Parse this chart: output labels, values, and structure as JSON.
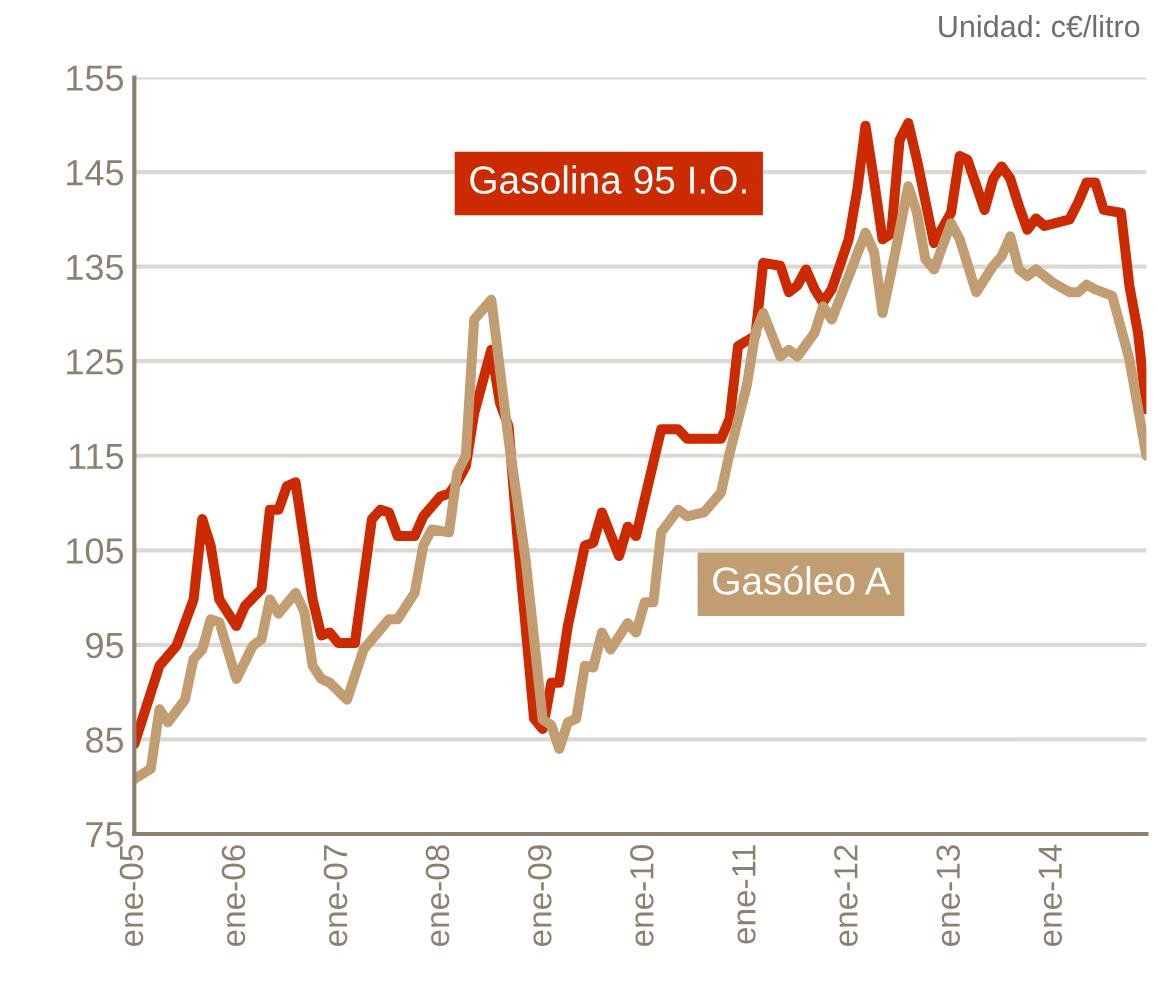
{
  "chart_data": {
    "type": "line",
    "annotations": [
      "Unidad: c€/litro"
    ],
    "xlim": [
      "2005-01",
      "2014-12"
    ],
    "xticks": [
      {
        "value": "2005-01",
        "label": "ene-05"
      },
      {
        "value": "2006-01",
        "label": "ene-06"
      },
      {
        "value": "2007-01",
        "label": "ene-07"
      },
      {
        "value": "2008-01",
        "label": "ene-08"
      },
      {
        "value": "2009-01",
        "label": "ene-09"
      },
      {
        "value": "2010-01",
        "label": "ene-10"
      },
      {
        "value": "2011-01",
        "label": "ene-11"
      },
      {
        "value": "2012-01",
        "label": "ene-12"
      },
      {
        "value": "2013-01",
        "label": "ene-13"
      },
      {
        "value": "2014-01",
        "label": "ene-14"
      }
    ],
    "ylim": [
      75,
      155
    ],
    "yticks": [
      75,
      85,
      95,
      105,
      115,
      125,
      135,
      145,
      155
    ],
    "grid": "y",
    "legend": false,
    "series": [
      {
        "name": "Gasolina 95 I.O.",
        "color": "#cc2a00",
        "x": [
          "2005-01",
          "2005-04",
          "2005-06",
          "2005-08",
          "2005-09",
          "2005-10",
          "2005-11",
          "2006-01",
          "2006-02",
          "2006-04",
          "2006-05",
          "2006-06",
          "2006-07",
          "2006-08",
          "2006-10",
          "2006-11",
          "2006-12",
          "2007-01",
          "2007-03",
          "2007-05",
          "2007-06",
          "2007-07",
          "2007-08",
          "2007-10",
          "2007-11",
          "2008-01",
          "2008-02",
          "2008-03",
          "2008-04",
          "2008-05",
          "2008-07",
          "2008-08",
          "2008-09",
          "2008-10",
          "2008-12",
          "2009-01",
          "2009-02",
          "2009-03",
          "2009-04",
          "2009-06",
          "2009-07",
          "2009-08",
          "2009-10",
          "2009-11",
          "2009-12",
          "2010-01",
          "2010-03",
          "2010-05",
          "2010-06",
          "2010-07",
          "2010-10",
          "2010-11",
          "2010-12",
          "2011-02",
          "2011-03",
          "2011-05",
          "2011-06",
          "2011-07",
          "2011-08",
          "2011-09",
          "2011-10",
          "2011-11",
          "2012-01",
          "2012-02",
          "2012-03",
          "2012-04",
          "2012-05",
          "2012-06",
          "2012-07",
          "2012-08",
          "2012-09",
          "2012-11",
          "2013-01",
          "2013-02",
          "2013-03",
          "2013-05",
          "2013-06",
          "2013-07",
          "2013-08",
          "2013-09",
          "2013-10",
          "2013-11",
          "2013-12",
          "2014-03",
          "2014-04",
          "2014-05",
          "2014-06",
          "2014-07",
          "2014-09",
          "2014-10",
          "2014-11",
          "2014-12"
        ],
        "values": [
          84.5,
          92.8,
          94.9,
          99.8,
          108.3,
          105.5,
          99.8,
          97.0,
          99.1,
          100.9,
          109.3,
          109.3,
          111.8,
          112.2,
          99.8,
          96.0,
          96.3,
          95.2,
          95.2,
          108.3,
          109.3,
          109.0,
          106.5,
          106.5,
          108.6,
          110.7,
          111.0,
          112.2,
          113.9,
          119.5,
          126.2,
          120.6,
          118.1,
          106.9,
          87.2,
          86.1,
          91.0,
          91.0,
          97.0,
          105.5,
          105.8,
          109.0,
          104.4,
          107.5,
          106.5,
          110.4,
          117.8,
          117.8,
          116.8,
          116.8,
          116.8,
          118.9,
          126.6,
          127.7,
          135.4,
          135.1,
          132.3,
          133.0,
          134.7,
          132.6,
          131.2,
          132.6,
          137.9,
          143.2,
          149.9,
          144.0,
          137.9,
          138.5,
          148.4,
          150.2,
          146.3,
          137.5,
          140.7,
          146.7,
          146.3,
          141.0,
          144.3,
          145.6,
          144.3,
          141.4,
          138.9,
          140.1,
          139.3,
          140.0,
          141.8,
          143.9,
          143.9,
          141.0,
          140.7,
          133.0,
          128.0,
          119.9
        ]
      },
      {
        "name": "Gasóleo A",
        "color": "#c29d72",
        "x": [
          "2005-01",
          "2005-03",
          "2005-04",
          "2005-05",
          "2005-07",
          "2005-08",
          "2005-09",
          "2005-10",
          "2005-11",
          "2006-01",
          "2006-03",
          "2006-04",
          "2006-05",
          "2006-06",
          "2006-08",
          "2006-09",
          "2006-10",
          "2006-11",
          "2006-12",
          "2007-02",
          "2007-04",
          "2007-07",
          "2007-08",
          "2007-10",
          "2007-11",
          "2007-12",
          "2008-02",
          "2008-03",
          "2008-04",
          "2008-05",
          "2008-07",
          "2008-09",
          "2008-11",
          "2009-01",
          "2009-02",
          "2009-03",
          "2009-04",
          "2009-05",
          "2009-06",
          "2009-07",
          "2009-08",
          "2009-09",
          "2009-11",
          "2009-12",
          "2010-01",
          "2010-02",
          "2010-03",
          "2010-05",
          "2010-06",
          "2010-08",
          "2010-10",
          "2010-11",
          "2011-01",
          "2011-02",
          "2011-03",
          "2011-05",
          "2011-06",
          "2011-07",
          "2011-09",
          "2011-10",
          "2011-11",
          "2012-01",
          "2012-03",
          "2012-04",
          "2012-05",
          "2012-06",
          "2012-08",
          "2012-09",
          "2012-10",
          "2012-11",
          "2013-01",
          "2013-02",
          "2013-04",
          "2013-06",
          "2013-07",
          "2013-08",
          "2013-09",
          "2013-10",
          "2013-11",
          "2014-01",
          "2014-03",
          "2014-04",
          "2014-05",
          "2014-06",
          "2014-08",
          "2014-10",
          "2014-12"
        ],
        "values": [
          80.8,
          81.9,
          88.2,
          86.8,
          89.2,
          93.5,
          94.5,
          97.7,
          97.4,
          91.4,
          94.9,
          95.6,
          99.8,
          98.3,
          100.5,
          98.5,
          92.8,
          91.4,
          91.0,
          89.2,
          94.5,
          97.7,
          97.7,
          100.5,
          105.5,
          107.2,
          106.9,
          113.2,
          115.0,
          129.4,
          131.5,
          116.7,
          104.0,
          87.1,
          86.5,
          84.0,
          86.8,
          87.2,
          92.8,
          92.6,
          96.3,
          94.5,
          97.3,
          96.3,
          99.5,
          99.5,
          106.9,
          109.3,
          108.6,
          109.0,
          111.1,
          115.3,
          122.4,
          128.0,
          130.1,
          125.5,
          126.2,
          125.5,
          128.0,
          130.8,
          129.4,
          134.0,
          138.6,
          136.5,
          130.1,
          134.4,
          143.5,
          140.7,
          135.8,
          134.7,
          139.6,
          137.9,
          132.3,
          135.1,
          136.1,
          138.2,
          134.7,
          134.0,
          134.7,
          133.3,
          132.3,
          132.3,
          133.1,
          132.6,
          131.9,
          125.2,
          115.0
        ]
      }
    ]
  }
}
